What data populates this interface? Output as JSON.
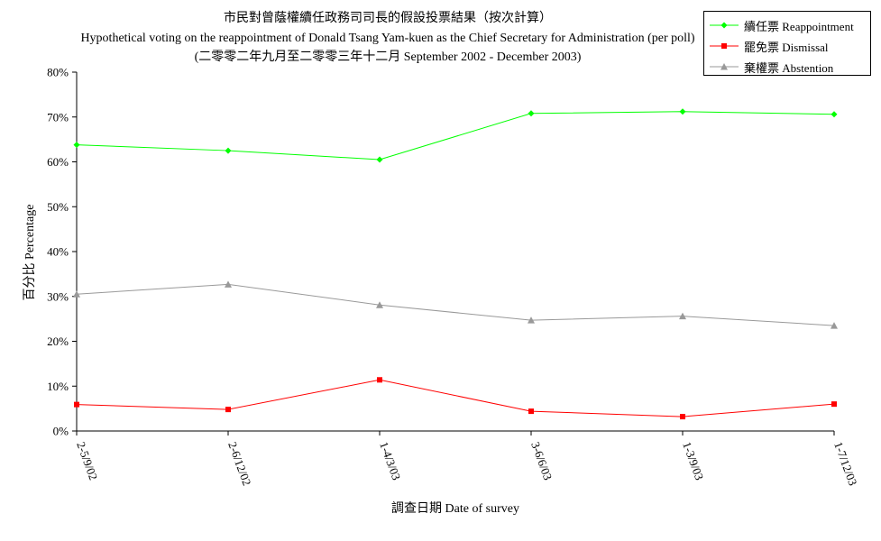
{
  "chart_data": {
    "type": "line",
    "title": "市民對曾蔭權續任政務司司長的假設投票結果（按次計算）",
    "subtitle": "Hypothetical voting on the reappointment of Donald Tsang Yam-kuen as the Chief Secretary for Administration (per poll)",
    "subtitle2": "(二零零二年九月至二零零三年十二月 September 2002 - December 2003)",
    "xlabel": "調查日期 Date of survey",
    "ylabel": "百分比 Percentage",
    "categories": [
      "2-5/9/02",
      "2-6/12/02",
      "1-4/3/03",
      "3-6/6/03",
      "1-3/9/03",
      "1-7/12/03"
    ],
    "ylim": [
      0,
      80
    ],
    "yticks": [
      "0%",
      "10%",
      "20%",
      "30%",
      "40%",
      "50%",
      "60%",
      "70%",
      "80%"
    ],
    "grid": false,
    "legend_position": "top-right",
    "series": [
      {
        "name": "續任票 Reappointment",
        "color": "#00ff00",
        "marker": "diamond",
        "values": [
          63.8,
          62.5,
          60.5,
          70.8,
          71.2,
          70.6
        ]
      },
      {
        "name": "罷免票 Dismissal",
        "color": "#ff0000",
        "marker": "square",
        "values": [
          5.9,
          4.8,
          11.4,
          4.4,
          3.2,
          6.0
        ]
      },
      {
        "name": "棄權票 Abstention",
        "color": "#999999",
        "marker": "triangle",
        "values": [
          30.5,
          32.7,
          28.1,
          24.7,
          25.6,
          23.5
        ]
      }
    ]
  }
}
